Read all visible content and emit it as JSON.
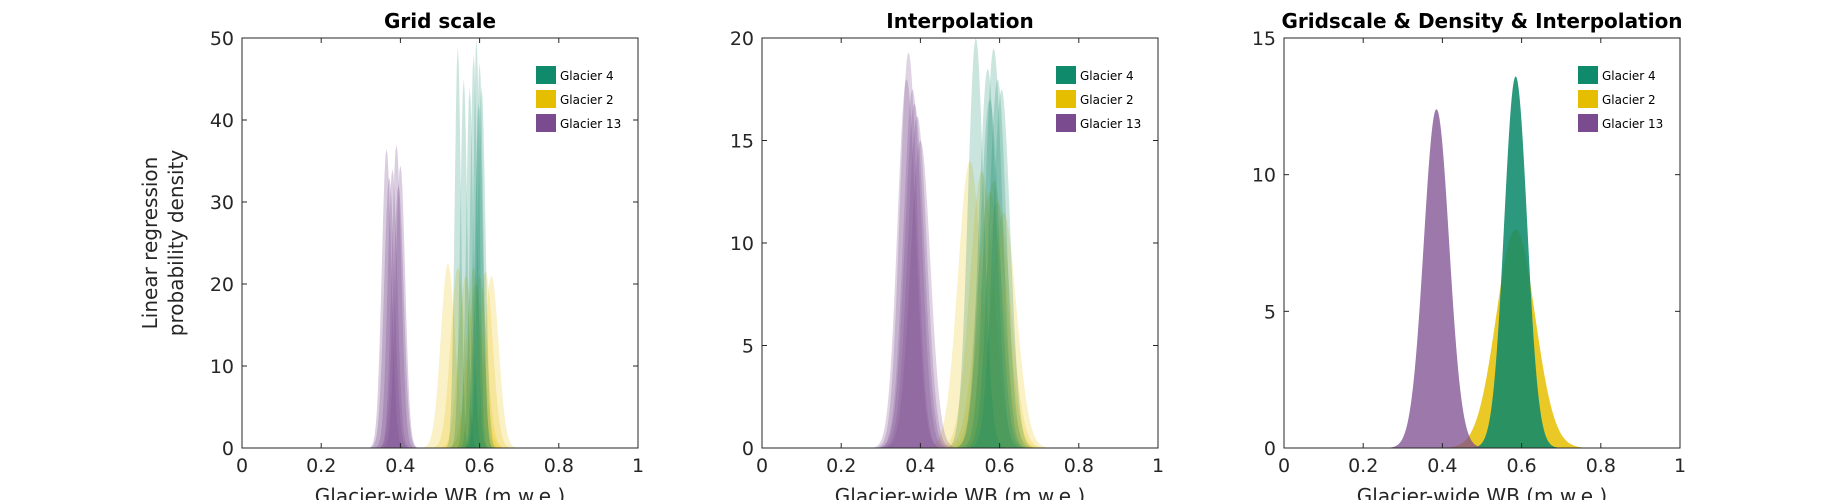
{
  "chart_data": [
    {
      "type": "area",
      "title": "Grid scale",
      "xlabel": "Glacier-wide WB (m w.e.)",
      "ylabel": [
        "Linear regression",
        "probability density"
      ],
      "xlim": [
        0,
        1
      ],
      "ylim": [
        0,
        50
      ],
      "xticks": [
        0,
        0.2,
        0.4,
        0.6,
        0.8,
        1
      ],
      "xtick_labels": [
        "0",
        "0.2",
        "0.4",
        "0.6",
        "0.8",
        "1"
      ],
      "yticks": [
        0,
        10,
        20,
        30,
        40,
        50
      ],
      "ytick_labels": [
        "0",
        "10",
        "20",
        "30",
        "40",
        "50"
      ],
      "legend_position": "top-right",
      "grid": false,
      "series": [
        {
          "name": "Glacier 4",
          "color": "#0f8a6b",
          "opacity": 0.22,
          "peaks": [
            [
              0.545,
              49.0,
              0.008
            ],
            [
              0.56,
              45.0,
              0.009
            ],
            [
              0.575,
              44.0,
              0.009
            ],
            [
              0.585,
              48.0,
              0.009
            ],
            [
              0.592,
              50.0,
              0.008
            ],
            [
              0.6,
              47.0,
              0.009
            ],
            [
              0.605,
              44.0,
              0.01
            ],
            [
              0.598,
              42.0,
              0.01
            ]
          ]
        },
        {
          "name": "Glacier 2",
          "color": "#e6be00",
          "opacity": 0.22,
          "peaks": [
            [
              0.52,
              22.5,
              0.018
            ],
            [
              0.545,
              22.0,
              0.018
            ],
            [
              0.565,
              21.0,
              0.018
            ],
            [
              0.585,
              22.0,
              0.018
            ],
            [
              0.6,
              21.0,
              0.018
            ],
            [
              0.615,
              21.5,
              0.018
            ],
            [
              0.63,
              21.0,
              0.018
            ],
            [
              0.59,
              20.0,
              0.02
            ]
          ]
        },
        {
          "name": "Glacier 13",
          "color": "#7b4b8f",
          "opacity": 0.28,
          "peaks": [
            [
              0.365,
              36.5,
              0.012
            ],
            [
              0.38,
              34.0,
              0.012
            ],
            [
              0.39,
              37.0,
              0.012
            ],
            [
              0.4,
              34.5,
              0.012
            ],
            [
              0.372,
              33.0,
              0.013
            ],
            [
              0.395,
              32.0,
              0.013
            ]
          ]
        }
      ]
    },
    {
      "type": "area",
      "title": "Interpolation",
      "xlabel": "Glacier-wide WB (m w.e.)",
      "ylabel": "",
      "xlim": [
        0,
        1
      ],
      "ylim": [
        0,
        20
      ],
      "xticks": [
        0,
        0.2,
        0.4,
        0.6,
        0.8,
        1
      ],
      "xtick_labels": [
        "0",
        "0.2",
        "0.4",
        "0.6",
        "0.8",
        "1"
      ],
      "yticks": [
        0,
        5,
        10,
        15,
        20
      ],
      "ytick_labels": [
        "0",
        "5",
        "10",
        "15",
        "20"
      ],
      "legend_position": "top-right",
      "grid": false,
      "series": [
        {
          "name": "Glacier 4",
          "color": "#0f8a6b",
          "opacity": 0.22,
          "peaks": [
            [
              0.54,
              20.0,
              0.02
            ],
            [
              0.57,
              18.5,
              0.022
            ],
            [
              0.585,
              19.5,
              0.022
            ],
            [
              0.595,
              18.0,
              0.022
            ],
            [
              0.605,
              17.5,
              0.022
            ],
            [
              0.575,
              17.0,
              0.024
            ]
          ]
        },
        {
          "name": "Glacier 2",
          "color": "#e6be00",
          "opacity": 0.22,
          "peaks": [
            [
              0.525,
              14.0,
              0.03
            ],
            [
              0.555,
              13.5,
              0.03
            ],
            [
              0.575,
              12.5,
              0.032
            ],
            [
              0.595,
              12.0,
              0.032
            ],
            [
              0.61,
              11.5,
              0.032
            ],
            [
              0.585,
              13.0,
              0.032
            ]
          ]
        },
        {
          "name": "Glacier 13",
          "color": "#7b4b8f",
          "opacity": 0.25,
          "peaks": [
            [
              0.37,
              19.3,
              0.022
            ],
            [
              0.38,
              17.5,
              0.023
            ],
            [
              0.392,
              16.2,
              0.024
            ],
            [
              0.365,
              18.0,
              0.023
            ],
            [
              0.4,
              15.0,
              0.025
            ],
            [
              0.385,
              16.8,
              0.024
            ]
          ]
        }
      ]
    },
    {
      "type": "area",
      "title": "Gridscale & Density & Interpolation",
      "xlabel": "Glacier-wide WB (m w.e.)",
      "ylabel": "",
      "xlim": [
        0,
        1
      ],
      "ylim": [
        0,
        15
      ],
      "xticks": [
        0,
        0.2,
        0.4,
        0.6,
        0.8,
        1
      ],
      "xtick_labels": [
        "0",
        "0.2",
        "0.4",
        "0.6",
        "0.8",
        "1"
      ],
      "yticks": [
        0,
        5,
        10,
        15
      ],
      "ytick_labels": [
        "0",
        "5",
        "10",
        "15"
      ],
      "legend_position": "top-right",
      "grid": false,
      "series": [
        {
          "name": "Glacier 4",
          "color": "#0f8a6b",
          "opacity": 0.88,
          "peaks": [
            [
              0.585,
              13.6,
              0.029
            ]
          ]
        },
        {
          "name": "Glacier 2",
          "color": "#e6be00",
          "opacity": 0.85,
          "peaks": [
            [
              0.585,
              8.0,
              0.049
            ]
          ]
        },
        {
          "name": "Glacier 13",
          "color": "#7b4b8f",
          "opacity": 0.75,
          "peaks": [
            [
              0.385,
              12.4,
              0.032
            ]
          ]
        }
      ]
    }
  ]
}
